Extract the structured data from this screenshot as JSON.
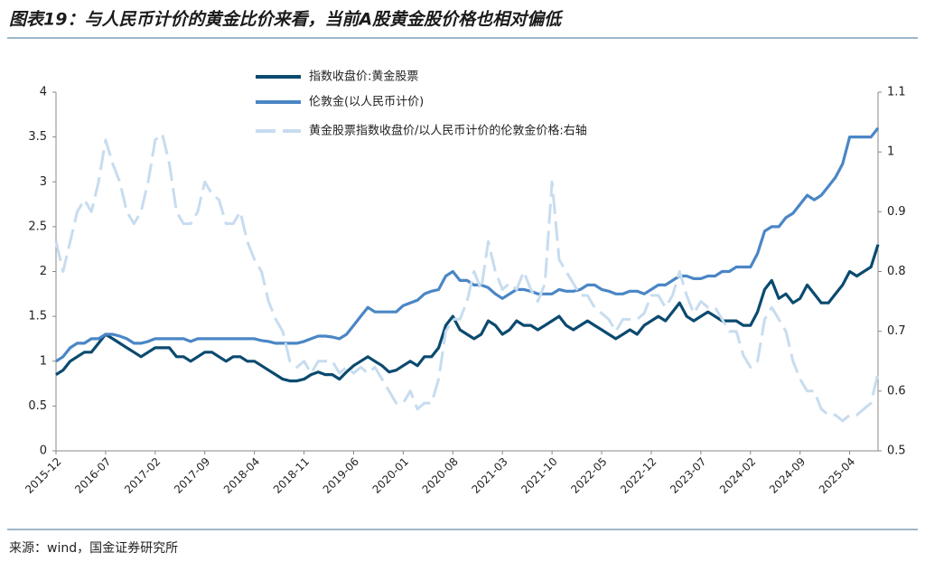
{
  "chart_data": {
    "type": "line",
    "title": "图表19：与人民币计价的黄金比价来看，当前A股黄金股价格也相对偏低",
    "source": "来源：wind，国金证券研究所",
    "categories": [
      "2015-12",
      null,
      null,
      null,
      null,
      null,
      null,
      "2016-07",
      null,
      null,
      null,
      null,
      null,
      null,
      "2017-02",
      null,
      null,
      null,
      null,
      null,
      null,
      "2017-09",
      null,
      null,
      null,
      null,
      null,
      null,
      "2018-04",
      null,
      null,
      null,
      null,
      null,
      null,
      "2018-11",
      null,
      null,
      null,
      null,
      null,
      null,
      "2019-06",
      null,
      null,
      null,
      null,
      null,
      null,
      "2020-01",
      null,
      null,
      null,
      null,
      null,
      null,
      "2020-08",
      null,
      null,
      null,
      null,
      null,
      null,
      "2021-03",
      null,
      null,
      null,
      null,
      null,
      null,
      "2021-10",
      null,
      null,
      null,
      null,
      null,
      null,
      "2022-05",
      null,
      null,
      null,
      null,
      null,
      null,
      "2022-12",
      null,
      null,
      null,
      null,
      null,
      null,
      "2023-07",
      null,
      null,
      null,
      null,
      null,
      null,
      "2024-02",
      null,
      null,
      null,
      null,
      null,
      null,
      "2024-09",
      null,
      null,
      null,
      null,
      null,
      null,
      "2025-04",
      null,
      null,
      null,
      null
    ],
    "ylim": [
      0,
      4
    ],
    "yticks": [
      0,
      0.5,
      1,
      1.5,
      2,
      2.5,
      3,
      3.5,
      4
    ],
    "y2lim": [
      0.5,
      1.1
    ],
    "y2ticks": [
      0.5,
      0.6,
      0.7,
      0.8,
      0.9,
      1,
      1.1
    ],
    "series": [
      {
        "name": "指数收盘价:黄金股票",
        "color": "#0b4a6f",
        "values": [
          0.85,
          0.9,
          1.0,
          1.05,
          1.1,
          1.1,
          1.2,
          1.3,
          1.25,
          1.2,
          1.15,
          1.1,
          1.05,
          1.1,
          1.15,
          1.15,
          1.15,
          1.05,
          1.05,
          1.0,
          1.05,
          1.1,
          1.1,
          1.05,
          1.0,
          1.05,
          1.05,
          1.0,
          1.0,
          0.95,
          0.9,
          0.85,
          0.8,
          0.78,
          0.78,
          0.8,
          0.85,
          0.88,
          0.85,
          0.85,
          0.8,
          0.88,
          0.95,
          1.0,
          1.05,
          1.0,
          0.95,
          0.88,
          0.9,
          0.95,
          1.0,
          0.95,
          1.05,
          1.05,
          1.15,
          1.4,
          1.5,
          1.35,
          1.3,
          1.25,
          1.3,
          1.45,
          1.4,
          1.3,
          1.35,
          1.45,
          1.4,
          1.4,
          1.35,
          1.4,
          1.45,
          1.5,
          1.4,
          1.35,
          1.4,
          1.45,
          1.4,
          1.35,
          1.3,
          1.25,
          1.3,
          1.35,
          1.3,
          1.4,
          1.45,
          1.5,
          1.45,
          1.55,
          1.65,
          1.5,
          1.45,
          1.5,
          1.55,
          1.5,
          1.45,
          1.45,
          1.45,
          1.4,
          1.4,
          1.55,
          1.8,
          1.9,
          1.7,
          1.75,
          1.65,
          1.7,
          1.85,
          1.75,
          1.65,
          1.65,
          1.75,
          1.85,
          2.0,
          1.95,
          2.0,
          2.05,
          2.3
        ]
      },
      {
        "name": "伦敦金(以人民币计价)",
        "color": "#4a86c6",
        "values": [
          1.0,
          1.05,
          1.15,
          1.2,
          1.2,
          1.25,
          1.25,
          1.3,
          1.3,
          1.28,
          1.25,
          1.2,
          1.2,
          1.22,
          1.25,
          1.25,
          1.25,
          1.25,
          1.25,
          1.22,
          1.25,
          1.25,
          1.25,
          1.25,
          1.25,
          1.25,
          1.25,
          1.25,
          1.25,
          1.23,
          1.22,
          1.2,
          1.2,
          1.2,
          1.2,
          1.22,
          1.25,
          1.28,
          1.28,
          1.27,
          1.25,
          1.3,
          1.4,
          1.5,
          1.6,
          1.55,
          1.55,
          1.55,
          1.55,
          1.62,
          1.65,
          1.68,
          1.75,
          1.78,
          1.8,
          1.95,
          2.0,
          1.9,
          1.9,
          1.85,
          1.85,
          1.82,
          1.75,
          1.7,
          1.75,
          1.8,
          1.8,
          1.78,
          1.75,
          1.75,
          1.75,
          1.8,
          1.78,
          1.78,
          1.8,
          1.85,
          1.85,
          1.8,
          1.78,
          1.75,
          1.75,
          1.78,
          1.78,
          1.75,
          1.8,
          1.85,
          1.85,
          1.9,
          1.95,
          1.95,
          1.92,
          1.92,
          1.95,
          1.95,
          2.0,
          2.0,
          2.05,
          2.05,
          2.05,
          2.2,
          2.45,
          2.5,
          2.5,
          2.6,
          2.65,
          2.75,
          2.85,
          2.8,
          2.85,
          2.95,
          3.05,
          3.2,
          3.5,
          3.5,
          3.5,
          3.5,
          3.6
        ]
      },
      {
        "name": "黄金股票指数收盘价/以人民币计价的伦敦金价格:右轴",
        "color": "#c7dcef",
        "dashed": true,
        "axis": "y2",
        "values": [
          0.85,
          0.8,
          0.85,
          0.9,
          0.92,
          0.9,
          0.95,
          1.02,
          0.98,
          0.95,
          0.9,
          0.88,
          0.9,
          0.95,
          1.02,
          1.03,
          0.98,
          0.9,
          0.88,
          0.88,
          0.9,
          0.95,
          0.93,
          0.92,
          0.88,
          0.88,
          0.9,
          0.85,
          0.82,
          0.8,
          0.75,
          0.72,
          0.7,
          0.65,
          0.64,
          0.65,
          0.63,
          0.65,
          0.65,
          0.65,
          0.63,
          0.64,
          0.63,
          0.64,
          0.63,
          0.64,
          0.62,
          0.6,
          0.58,
          0.58,
          0.6,
          0.57,
          0.58,
          0.58,
          0.62,
          0.7,
          0.72,
          0.72,
          0.75,
          0.8,
          0.77,
          0.85,
          0.8,
          0.77,
          0.78,
          0.77,
          0.8,
          0.77,
          0.75,
          0.78,
          0.95,
          0.82,
          0.8,
          0.78,
          0.76,
          0.76,
          0.74,
          0.73,
          0.72,
          0.7,
          0.72,
          0.72,
          0.72,
          0.73,
          0.76,
          0.76,
          0.74,
          0.76,
          0.8,
          0.76,
          0.73,
          0.75,
          0.74,
          0.74,
          0.72,
          0.7,
          0.7,
          0.66,
          0.64,
          0.65,
          0.72,
          0.74,
          0.72,
          0.7,
          0.65,
          0.62,
          0.6,
          0.6,
          0.57,
          0.56,
          0.56,
          0.55,
          0.56,
          0.56,
          0.57,
          0.58,
          0.63
        ]
      }
    ]
  }
}
